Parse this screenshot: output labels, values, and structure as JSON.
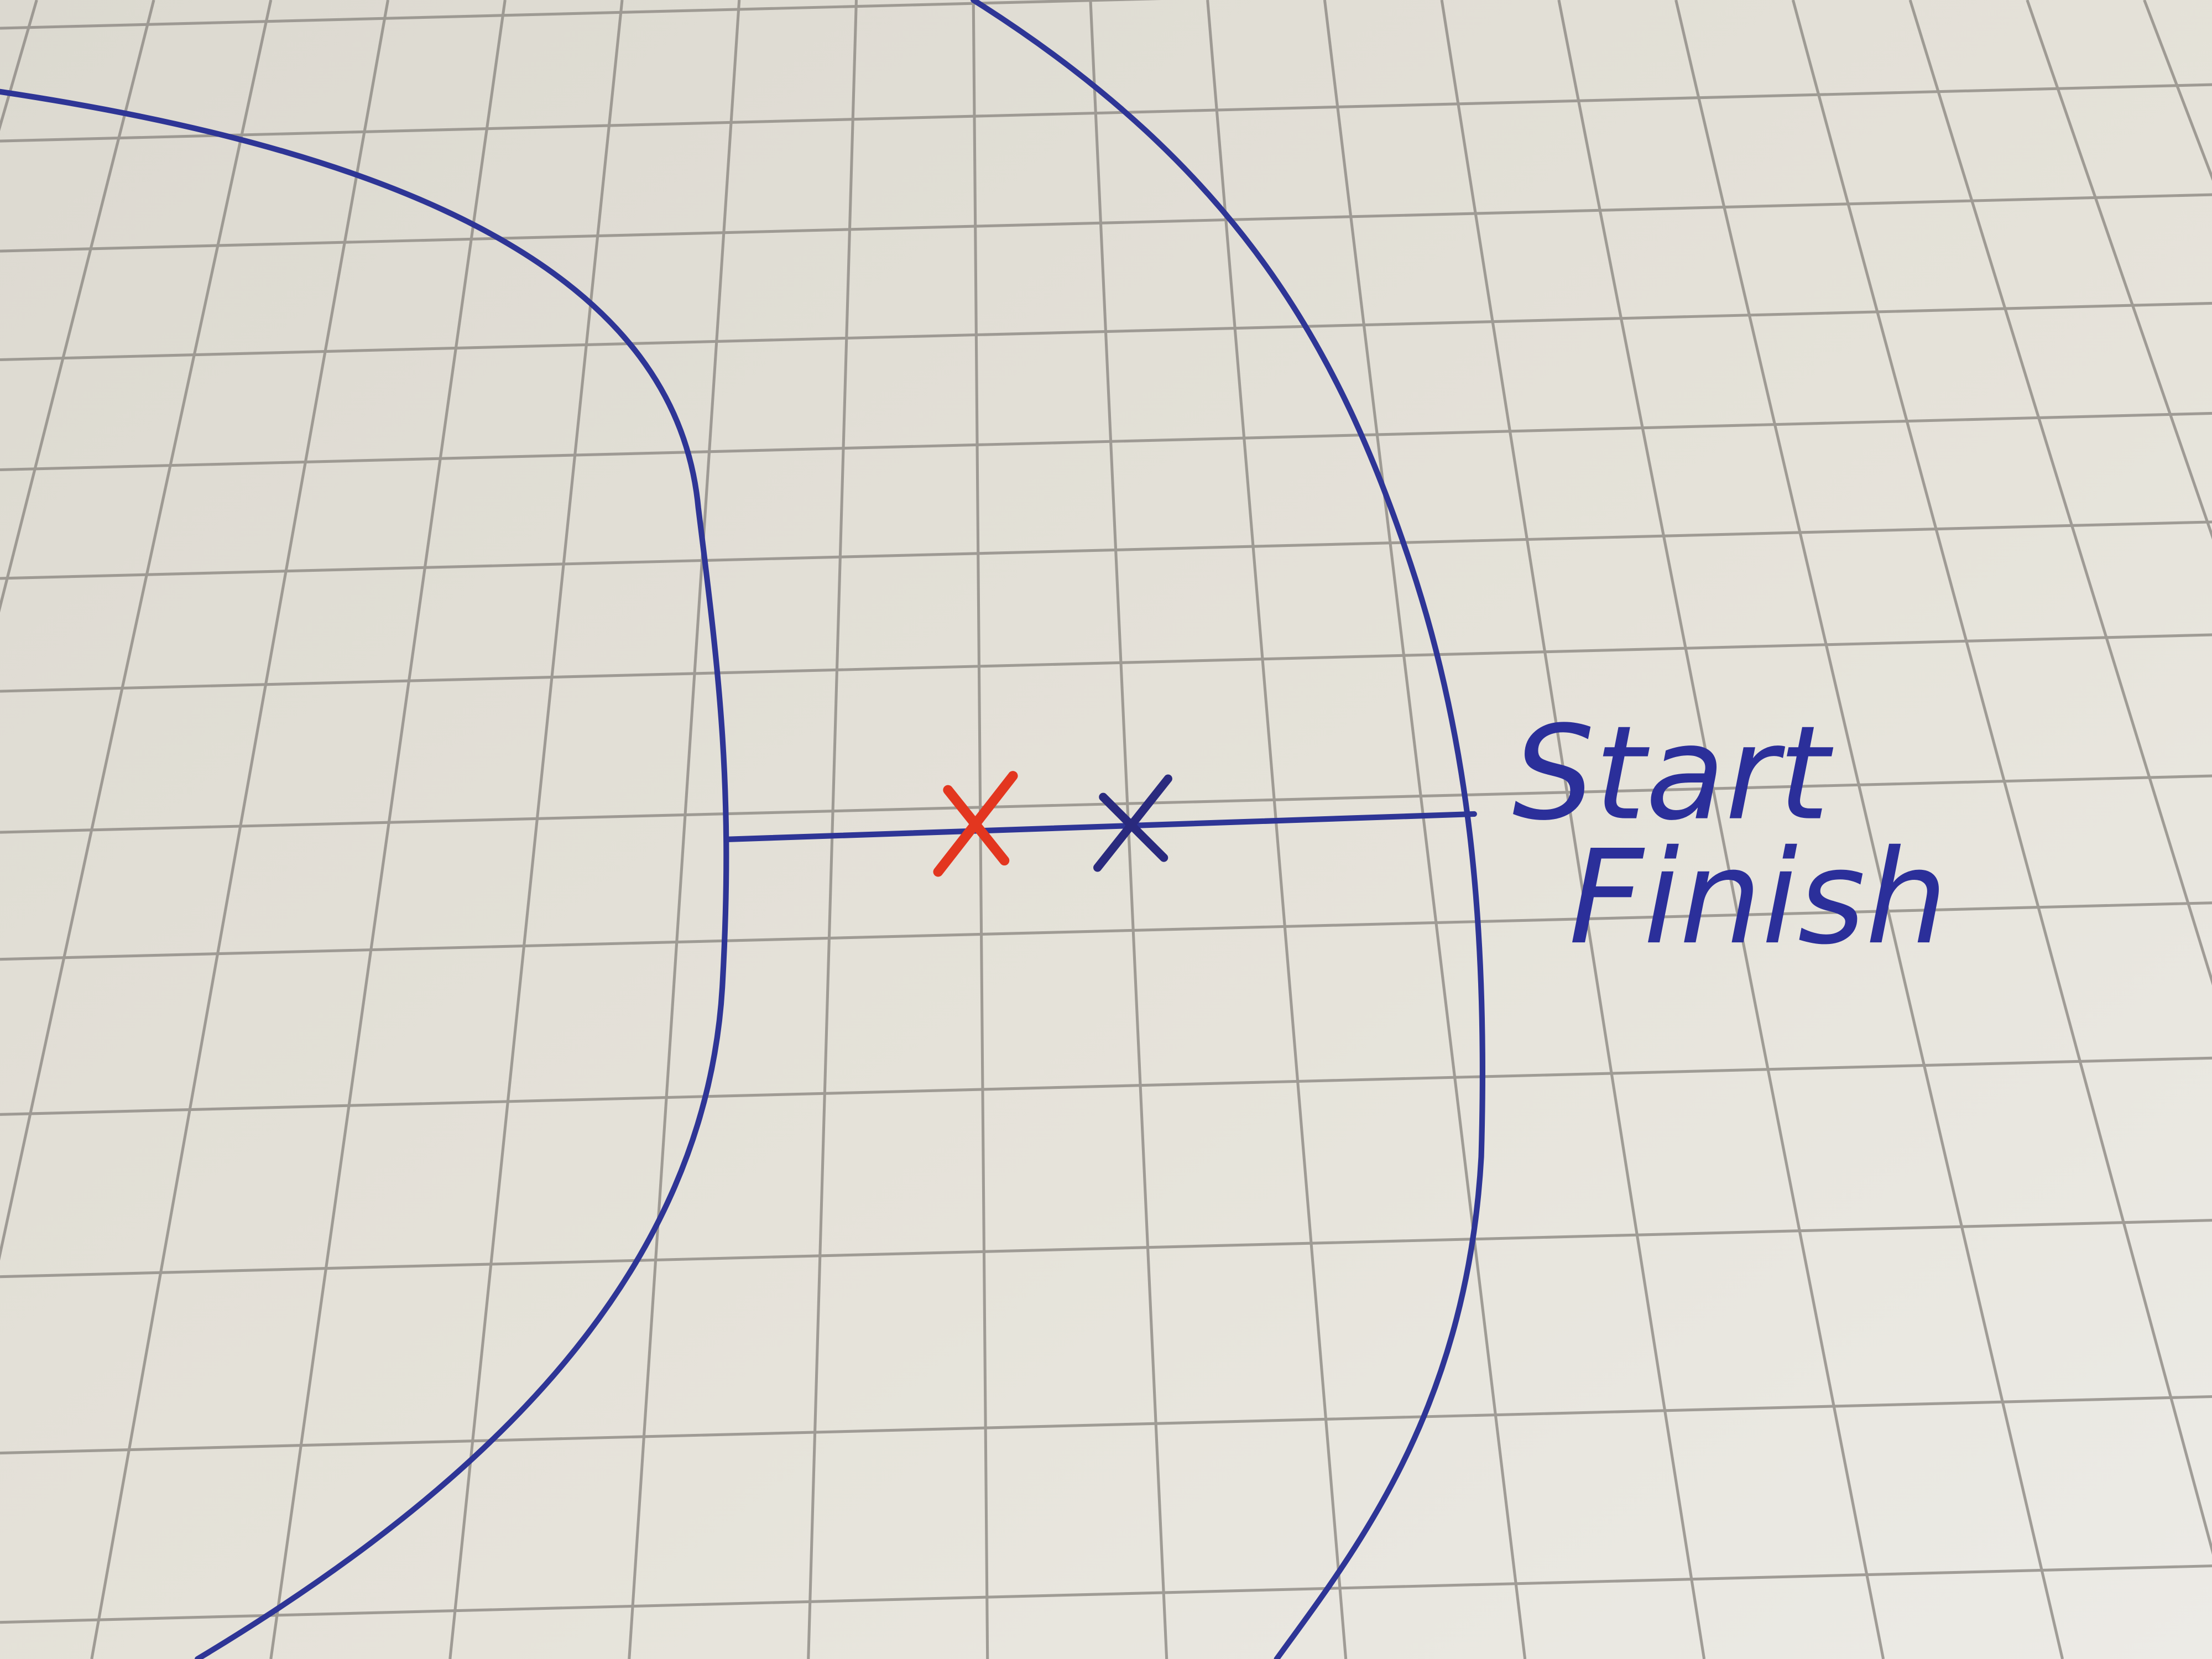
{
  "labels": {
    "start": "Start",
    "finish": "Finish"
  }
}
